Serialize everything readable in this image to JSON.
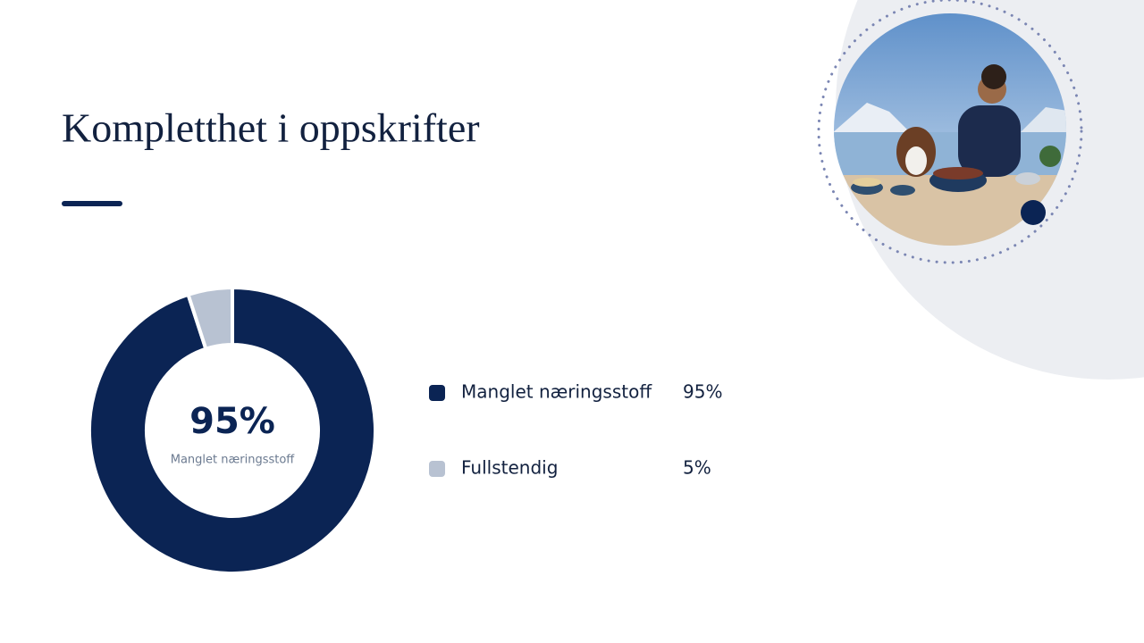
{
  "chart_data": {
    "type": "pie",
    "title": "Kompletthet i oppskrifter",
    "categories": [
      "Manglet næringsstoff",
      "Fullstendig"
    ],
    "values": [
      95,
      5
    ],
    "value_labels": [
      "95%",
      "5%"
    ],
    "colors": [
      "#0b2454",
      "#b8c2d2"
    ]
  }
}
